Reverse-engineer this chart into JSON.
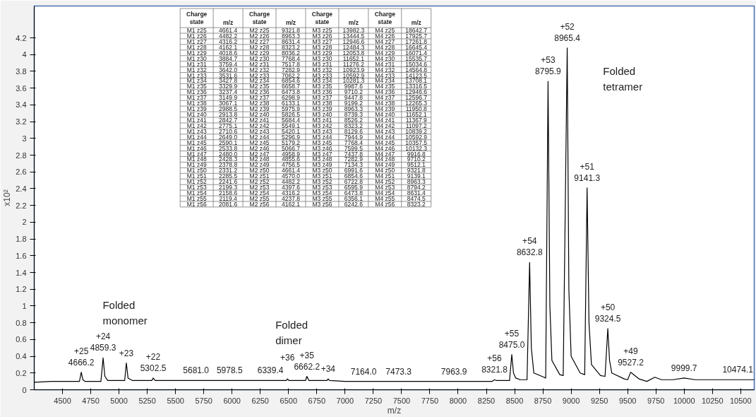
{
  "chart_data": {
    "type": "line",
    "xlabel": "m/z",
    "ylabel": "x10²",
    "xlim": [
      4250,
      10620
    ],
    "ylim": [
      0,
      4.58
    ],
    "xticks": [
      4500,
      4750,
      5000,
      5250,
      5500,
      5750,
      6000,
      6250,
      6500,
      6750,
      7000,
      7250,
      7500,
      7750,
      8000,
      8250,
      8500,
      8750,
      9000,
      9250,
      9500,
      9750,
      10000,
      10250,
      10500
    ],
    "yticks": [
      0,
      0.2,
      0.4,
      0.6,
      0.8,
      1,
      1.2,
      1.4,
      1.6,
      1.8,
      2,
      2.2,
      2.4,
      2.6,
      2.8,
      3,
      3.2,
      3.4,
      3.6,
      3.8,
      4,
      4.2
    ],
    "grid": false,
    "marker": "none",
    "line_style": "solid",
    "series": [
      {
        "color": "#000000",
        "x": [
          4250,
          4400,
          4550,
          4650,
          4666.2,
          4680,
          4700,
          4840,
          4859.3,
          4875,
          4900,
          5050,
          5065,
          5080,
          5120,
          5290,
          5302.5,
          5320,
          5500,
          5681.0,
          5800,
          5978.5,
          6150,
          6339.4,
          6480,
          6490,
          6505,
          6650,
          6662.2,
          6680,
          6840,
          6850,
          6865,
          7000,
          7164.0,
          7473.3,
          7700,
          7963.9,
          8150,
          8300,
          8321.8,
          8340,
          8455,
          8475.0,
          8490,
          8510,
          8550,
          8610,
          8632.8,
          8648,
          8670,
          8760,
          8775,
          8795.9,
          8812,
          8830,
          8900,
          8930,
          8965.4,
          8980,
          9000,
          9080,
          9120,
          9141.3,
          9158,
          9180,
          9260,
          9300,
          9324.5,
          9340,
          9360,
          9470,
          9500,
          9527.2,
          9545,
          9600,
          9670,
          9740,
          9800,
          9900,
          9999.7,
          10100,
          10300,
          10474.1,
          10620
        ],
        "values": [
          0.09,
          0.1,
          0.1,
          0.1,
          0.21,
          0.12,
          0.1,
          0.1,
          0.38,
          0.16,
          0.11,
          0.11,
          0.32,
          0.14,
          0.11,
          0.11,
          0.14,
          0.11,
          0.11,
          0.11,
          0.11,
          0.11,
          0.11,
          0.11,
          0.11,
          0.13,
          0.11,
          0.11,
          0.16,
          0.11,
          0.11,
          0.13,
          0.11,
          0.1,
          0.1,
          0.1,
          0.1,
          0.1,
          0.1,
          0.1,
          0.12,
          0.11,
          0.11,
          0.42,
          0.2,
          0.14,
          0.12,
          0.12,
          1.52,
          0.5,
          0.2,
          0.15,
          0.14,
          3.68,
          1.0,
          0.35,
          0.18,
          0.17,
          4.08,
          1.2,
          0.4,
          0.2,
          0.18,
          2.41,
          0.8,
          0.3,
          0.17,
          0.16,
          0.73,
          0.35,
          0.2,
          0.13,
          0.12,
          0.21,
          0.19,
          0.13,
          0.1,
          0.15,
          0.12,
          0.12,
          0.14,
          0.12,
          0.12,
          0.12,
          0.12
        ]
      }
    ],
    "annotations": [
      {
        "text": "+25",
        "x": 4666.2,
        "y": 0.21
      },
      {
        "text": "4666.2",
        "x": 4666.2,
        "y": 0.21
      },
      {
        "text": "+24",
        "x": 4859.3,
        "y": 0.38
      },
      {
        "text": "4859.3",
        "x": 4859.3,
        "y": 0.38
      },
      {
        "text": "+23",
        "x": 5065,
        "y": 0.32
      },
      {
        "text": "+22",
        "x": 5302.5,
        "y": 0.14
      },
      {
        "text": "5302.5",
        "x": 5302.5,
        "y": 0.14
      },
      {
        "text": "5681.0",
        "x": 5681.0,
        "y": 0.11
      },
      {
        "text": "5978.5",
        "x": 5978.5,
        "y": 0.11
      },
      {
        "text": "6339.4",
        "x": 6339.4,
        "y": 0.11
      },
      {
        "text": "+36",
        "x": 6490,
        "y": 0.13
      },
      {
        "text": "+35",
        "x": 6662.2,
        "y": 0.16
      },
      {
        "text": "6662.2",
        "x": 6662.2,
        "y": 0.16
      },
      {
        "text": "+34",
        "x": 6850,
        "y": 0.13
      },
      {
        "text": "7164.0",
        "x": 7164.0,
        "y": 0.1
      },
      {
        "text": "7473.3",
        "x": 7473.3,
        "y": 0.1
      },
      {
        "text": "7963.9",
        "x": 7963.9,
        "y": 0.1
      },
      {
        "text": "+56",
        "x": 8321.8,
        "y": 0.12
      },
      {
        "text": "8321.8",
        "x": 8321.8,
        "y": 0.12
      },
      {
        "text": "+55",
        "x": 8475.0,
        "y": 0.42
      },
      {
        "text": "8475.0",
        "x": 8475.0,
        "y": 0.42
      },
      {
        "text": "+54",
        "x": 8632.8,
        "y": 1.52
      },
      {
        "text": "8632.8",
        "x": 8632.8,
        "y": 1.52
      },
      {
        "text": "+53",
        "x": 8795.9,
        "y": 3.68
      },
      {
        "text": "8795.9",
        "x": 8795.9,
        "y": 3.68
      },
      {
        "text": "+52",
        "x": 8965.4,
        "y": 4.08
      },
      {
        "text": "8965.4",
        "x": 8965.4,
        "y": 4.08
      },
      {
        "text": "+51",
        "x": 9141.3,
        "y": 2.41
      },
      {
        "text": "9141.3",
        "x": 9141.3,
        "y": 2.41
      },
      {
        "text": "+50",
        "x": 9324.5,
        "y": 0.73
      },
      {
        "text": "9324.5",
        "x": 9324.5,
        "y": 0.73
      },
      {
        "text": "+49",
        "x": 9527.2,
        "y": 0.21
      },
      {
        "text": "9527.2",
        "x": 9527.2,
        "y": 0.21
      },
      {
        "text": "9999.7",
        "x": 9999.7,
        "y": 0.14
      },
      {
        "text": "10474.1",
        "x": 10474.1,
        "y": 0.12
      },
      "Folded monomer",
      "Folded dimer",
      "Folded tetramer",
      "Charge state",
      "m/z",
      "Charge state",
      "m/z",
      "Charge state",
      "m/z",
      "Charge state",
      "m/z",
      "M1 z25",
      "4661.4",
      "M2 z25",
      "9321.8",
      "M3 z25",
      "13982.3",
      "M4 z25",
      "18642.7",
      "M1 z26",
      "4482.2",
      "M2 z26",
      "8963.3",
      "M3 z26",
      "13444.5",
      "M4 z26",
      "17925.7",
      "M1 z27",
      "4316.2",
      "M2 z27",
      "8631.4",
      "M3 z27",
      "12946.6",
      "M4 z27",
      "17261.8",
      "M1 z28",
      "4162.1",
      "M2 z28",
      "8323.2",
      "M3 z28",
      "12484.3",
      "M4 z28",
      "16645.4",
      "M1 z29",
      "4018.6",
      "M2 z29",
      "8036.2",
      "M3 z29",
      "12053.8",
      "M4 z29",
      "16071.4",
      "M1 z30",
      "3884.7",
      "M2 z30",
      "7768.4",
      "M3 z30",
      "11652.1",
      "M4 z30",
      "15535.7",
      "M1 z31",
      "3759.4",
      "M2 z31",
      "7517.8",
      "M3 z31",
      "11276.2",
      "M4 z31",
      "15034.6",
      "M1 z32",
      "3642.0",
      "M2 z32",
      "7282.9",
      "M3 z32",
      "10923.9",
      "M4 z32",
      "14564.8",
      "M1 z33",
      "3531.6",
      "M2 z33",
      "7062.2",
      "M3 z33",
      "10592.9",
      "M4 z33",
      "14123.5",
      "M1 z34",
      "3427.8",
      "M2 z34",
      "6854.6",
      "M3 z34",
      "10281.3",
      "M4 z34",
      "13708.1",
      "M1 z35",
      "3329.9",
      "M2 z35",
      "6658.7",
      "M3 z35",
      "9987.6",
      "M4 z35",
      "13316.5",
      "M1 z36",
      "3237.4",
      "M2 z36",
      "6473.8",
      "M3 z36",
      "9710.2",
      "M4 z36",
      "12946.6",
      "M1 z37",
      "3149.9",
      "M2 z37",
      "6298.9",
      "M3 z37",
      "9447.8",
      "M4 z37",
      "12596.7",
      "M1 z38",
      "3067.1",
      "M2 z38",
      "6133.1",
      "M3 z38",
      "9199.2",
      "M4 z38",
      "12265.3",
      "M1 z39",
      "2988.5",
      "M2 z39",
      "5975.9",
      "M3 z39",
      "8963.3",
      "M4 z39",
      "11950.8",
      "M1 z40",
      "2913.8",
      "M2 z40",
      "5826.5",
      "M3 z40",
      "8739.3",
      "M4 z40",
      "11652.1",
      "M1 z41",
      "2842.7",
      "M2 z41",
      "5684.4",
      "M3 z41",
      "8526.2",
      "M4 z41",
      "11367.9",
      "M1 z42",
      "2775.1",
      "M2 z42",
      "5549.1",
      "M3 z42",
      "8323.2",
      "M4 z42",
      "11097.2",
      "M1 z43",
      "2710.6",
      "M2 z43",
      "5420.1",
      "M3 z43",
      "8129.6",
      "M4 z43",
      "10839.2",
      "M1 z44",
      "2649.0",
      "M2 z44",
      "5296.9",
      "M3 z44",
      "7944.9",
      "M4 z44",
      "10592.9",
      "M1 z45",
      "2590.1",
      "M2 z45",
      "5179.2",
      "M3 z45",
      "7768.4",
      "M4 z45",
      "10357.5",
      "M1 z46",
      "2533.8",
      "M2 z46",
      "5066.7",
      "M3 z46",
      "7599.5",
      "M4 z46",
      "10132.3",
      "M1 z47",
      "2480.0",
      "M2 z47",
      "4958.9",
      "M3 z47",
      "7437.8",
      "M4 z47",
      "9916.8",
      "M1 z48",
      "2428.3",
      "M2 z48",
      "4855.6",
      "M3 z48",
      "7282.9",
      "M4 z48",
      "9710.2",
      "M1 z49",
      "2378.8",
      "M2 z49",
      "4756.5",
      "M3 z49",
      "7134.3",
      "M4 z49",
      "9512.1",
      "M1 z50",
      "2331.2",
      "M2 z50",
      "4661.4",
      "M3 z50",
      "6991.6",
      "M4 z50",
      "9321.8",
      "M1 z51",
      "2285.5",
      "M2 z51",
      "4570.0",
      "M3 z51",
      "6854.6",
      "M4 z51",
      "9139.1",
      "M1 z52",
      "2241.6",
      "M2 z52",
      "4482.2",
      "M3 z52",
      "6722.8",
      "M4 z52",
      "8963.3",
      "M1 z53",
      "2199.3",
      "M2 z53",
      "4397.6",
      "M3 z53",
      "6595.9",
      "M4 z53",
      "8794.2",
      "M1 z54",
      "2158.6",
      "M2 z54",
      "4316.2",
      "M3 z54",
      "6473.8",
      "M4 z54",
      "8631.4",
      "M1 z55",
      "2119.4",
      "M2 z55",
      "4237.8",
      "M3 z55",
      "6356.1",
      "M4 z55",
      "8474.5",
      "M1 z56",
      "2081.6",
      "M2 z56",
      "4162.1",
      "M3 z56",
      "6242.6",
      "M4 z56",
      "8323.2"
    ]
  }
}
